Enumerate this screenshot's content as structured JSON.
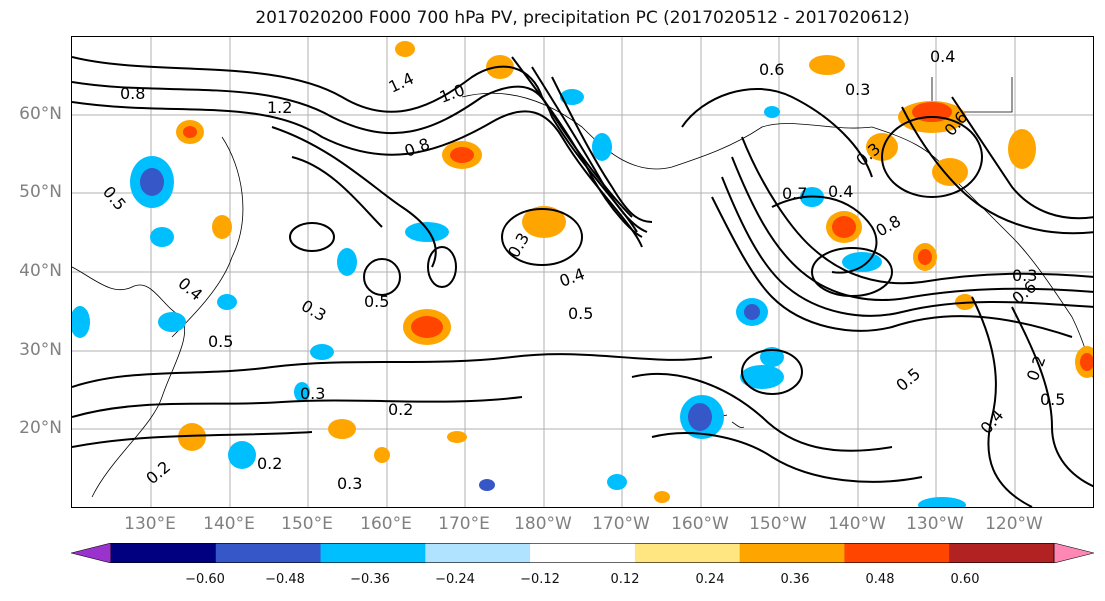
{
  "title": "2017020200 F000 700 hPa PV, precipitation PC (2017020512 - 2017020612)",
  "lat_labels": [
    "60°N",
    "50°N",
    "40°N",
    "30°N",
    "20°N"
  ],
  "lon_labels": [
    "130°E",
    "140°E",
    "150°E",
    "160°E",
    "170°E",
    "180°W",
    "170°W",
    "160°W",
    "150°W",
    "140°W",
    "130°W",
    "120°W"
  ],
  "contour_labels": [
    "0.8",
    "1.4",
    "1.2",
    "1.0",
    "0.8",
    "0.6",
    "0.4",
    "0.3",
    "0.5",
    "0.4",
    "0.3",
    "0.5",
    "0.5",
    "0.3",
    "0.2",
    "0.3",
    "0.2",
    "0.2",
    "0.3",
    "0.4",
    "0.5",
    "0.7",
    "0.8",
    "0.3",
    "0.4",
    "0.5",
    "0.2",
    "0.5",
    "0.6",
    "0.4",
    "0.3",
    "0.6"
  ],
  "colorbar": {
    "ticks": [
      "−0.60",
      "−0.48",
      "−0.36",
      "−0.24",
      "−0.12",
      "0.12",
      "0.24",
      "0.36",
      "0.48",
      "0.60"
    ],
    "colors": [
      "#9a32cd",
      "#000080",
      "#3657c8",
      "#00bfff",
      "#afe3ff",
      "#ffffff",
      "#ffe680",
      "#ffa500",
      "#ff4500",
      "#b22222",
      "#ff87b4"
    ]
  }
}
